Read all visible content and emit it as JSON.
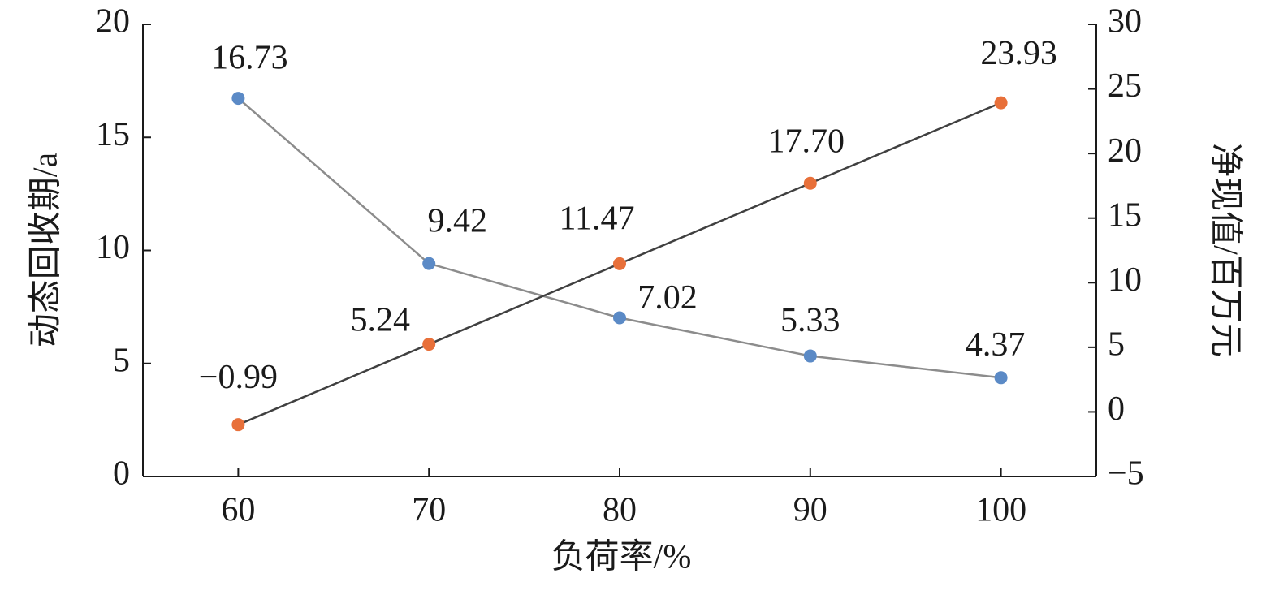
{
  "chart_data": {
    "type": "line",
    "xlabel": "负荷率/%",
    "ylabel": "动态回收期/a",
    "y2label": "净现值/百万元",
    "x": [
      60,
      70,
      80,
      90,
      100
    ],
    "xlim": [
      55,
      105
    ],
    "xticks": [
      60,
      70,
      80,
      90,
      100
    ],
    "ylim": [
      0,
      20
    ],
    "yticks": [
      0,
      5,
      10,
      15,
      20
    ],
    "y2lim": [
      -5,
      30
    ],
    "y2ticks": [
      {
        "value": -5,
        "label": "−5"
      },
      0,
      5,
      10,
      15,
      20,
      25,
      30
    ],
    "series": [
      {
        "color": "#5b8ac6",
        "line_color": "#8c8c8c",
        "values": [
          16.73,
          9.42,
          7.02,
          5.33,
          4.37
        ],
        "value_labels": [
          "16.73",
          "9.42",
          "7.02",
          "5.33",
          "4.37"
        ]
      },
      {
        "color": "#e8703a",
        "line_color": "#404040",
        "axis": "y2",
        "values": [
          -0.99,
          5.24,
          11.47,
          17.7,
          23.93
        ],
        "value_labels": [
          "−0.99",
          "5.24",
          "11.47",
          "17.70",
          "23.93"
        ]
      }
    ]
  }
}
